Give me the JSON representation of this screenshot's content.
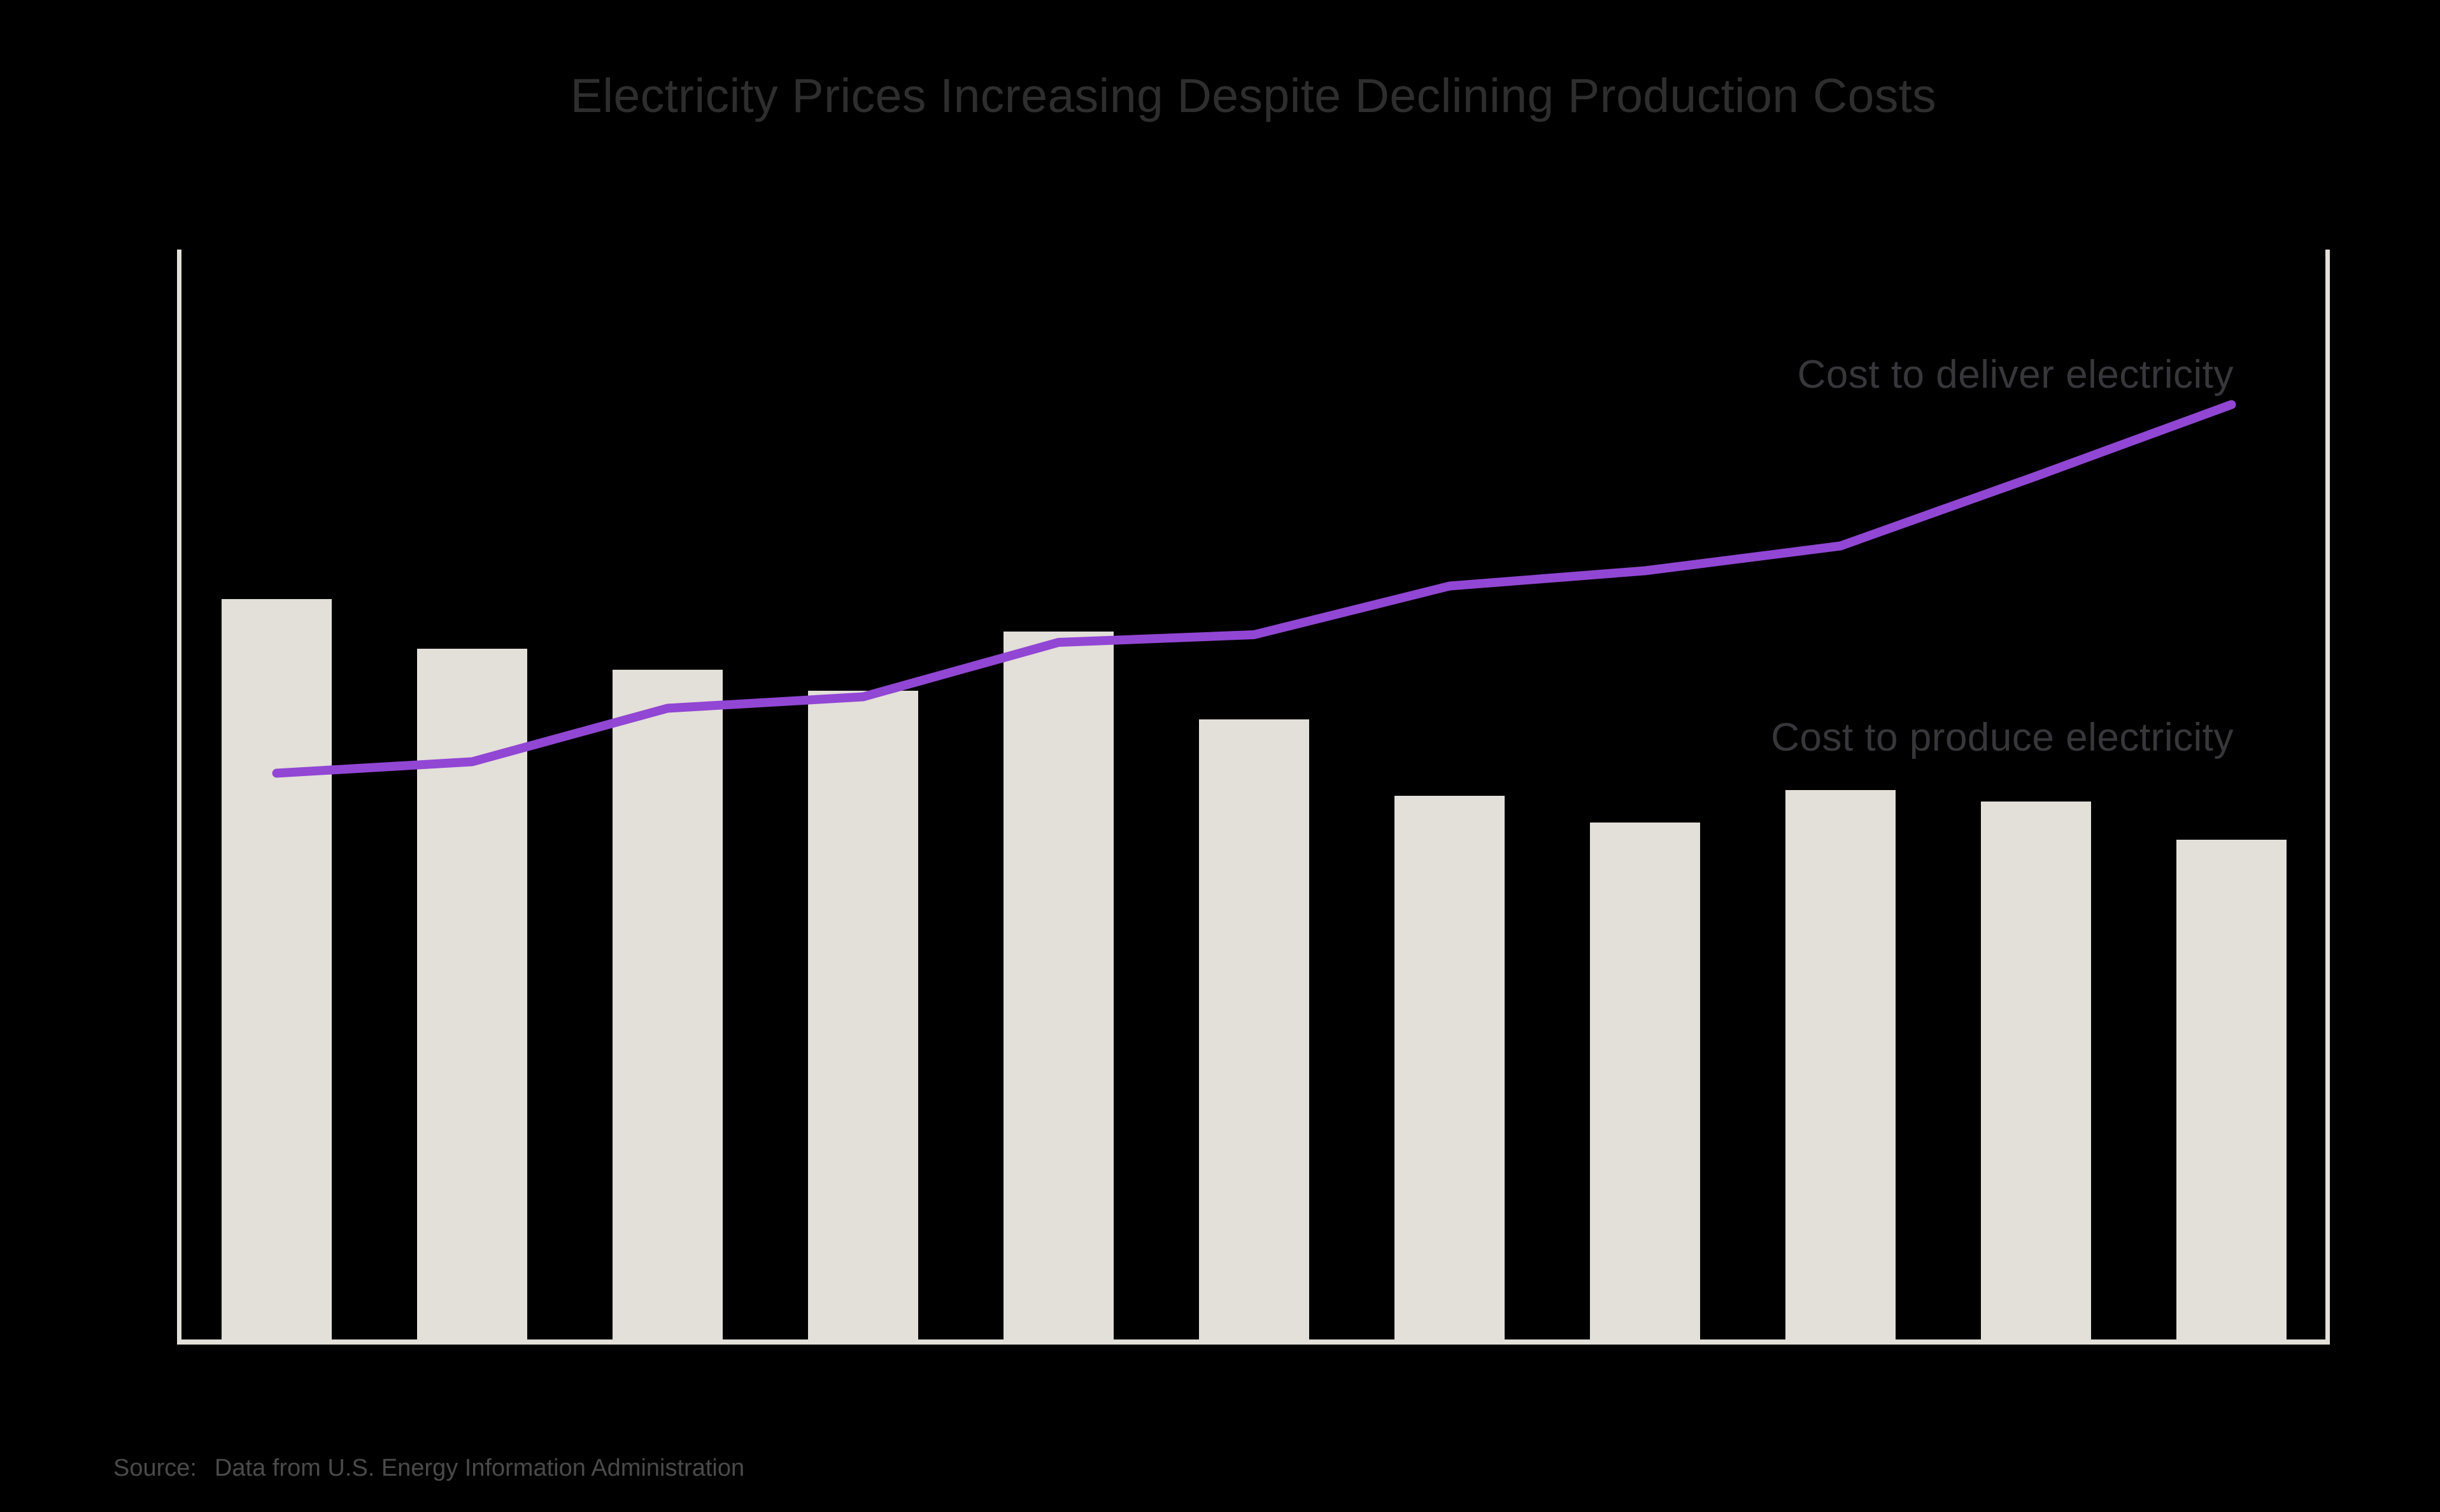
{
  "page": {
    "background": "#000000"
  },
  "header": {
    "title": "Electricity Prices Increasing Despite Declining Production Costs"
  },
  "annotations": {
    "deliver_label": "Cost to deliver electricity",
    "produce_label": "Cost to produce electricity"
  },
  "footer": {
    "source_label": "Source:",
    "source_text": "Data from U.S. Energy Information Administration"
  },
  "colors": {
    "background": "#000000",
    "bar": "#e3dfd9",
    "axis": "#e3dfd9",
    "line": "#9146d4",
    "title_text": "#2e2e2e",
    "label_text": "#37373b",
    "source_text": "#4a4a4a"
  },
  "chart_data": {
    "type": "bar",
    "title": "Electricity Prices Increasing Despite Declining Production Costs",
    "xlabel": "",
    "ylabel": "",
    "x": [
      1,
      2,
      3,
      4,
      5,
      6,
      7,
      8,
      9,
      10,
      11
    ],
    "x_tick_labels_visible": false,
    "y_tick_labels_visible": false,
    "grid": false,
    "legend_position": "inline-annotations",
    "ylim": [
      0,
      11.4
    ],
    "units": "relative cost (no axis scale shown; values estimated from pixel heights)",
    "series": [
      {
        "name": "Cost to produce electricity",
        "type": "bar",
        "color": "#e3dfd9",
        "values": [
          7.75,
          7.23,
          7.01,
          6.79,
          7.41,
          6.49,
          5.69,
          5.41,
          5.75,
          5.63,
          5.23
        ]
      },
      {
        "name": "Cost to deliver electricity",
        "type": "line",
        "color": "#9146d4",
        "values": [
          5.93,
          6.05,
          6.61,
          6.73,
          7.3,
          7.38,
          7.89,
          8.05,
          8.31,
          9.04,
          9.79
        ]
      }
    ],
    "source": "Source: Data from U.S. Energy Information Administration"
  }
}
